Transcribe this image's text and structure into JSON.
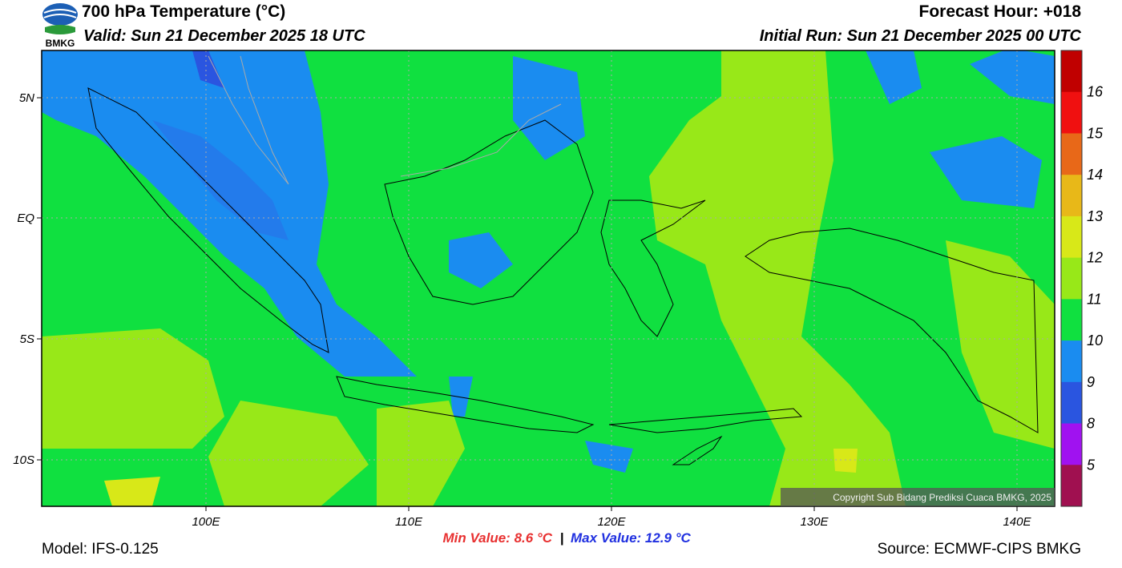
{
  "header": {
    "title": "700 hPa Temperature (°C)",
    "valid": "Valid: Sun 21 December 2025 18 UTC",
    "forecast_hour": "Forecast Hour: +018",
    "initial_run": "Initial Run: Sun 21 December 2025 00 UTC",
    "logo_text": "BMKG"
  },
  "map": {
    "lat_labels": [
      "5N",
      "EQ",
      "5S",
      "10S"
    ],
    "lon_labels": [
      "100E",
      "110E",
      "120E",
      "130E",
      "140E"
    ],
    "copyright": "Copyright Sub Bidang Prediksi Cuaca BMKG, 2025"
  },
  "colorbar": {
    "colors": [
      "#c00000",
      "#f01010",
      "#e86818",
      "#e8b818",
      "#d8e818",
      "#98e818",
      "#10e040",
      "#1a8cf0",
      "#2a55e0",
      "#a012f0",
      "#a01050"
    ],
    "labels": [
      "16",
      "15",
      "14",
      "13",
      "12",
      "11",
      "10",
      "9",
      "8",
      "5"
    ]
  },
  "footer": {
    "model": "Model: IFS-0.125",
    "min_value": "Min Value: 8.6 °C",
    "separator": "|",
    "max_value": "Max Value: 12.9 °C",
    "source": "Source: ECMWF-CIPS BMKG"
  }
}
